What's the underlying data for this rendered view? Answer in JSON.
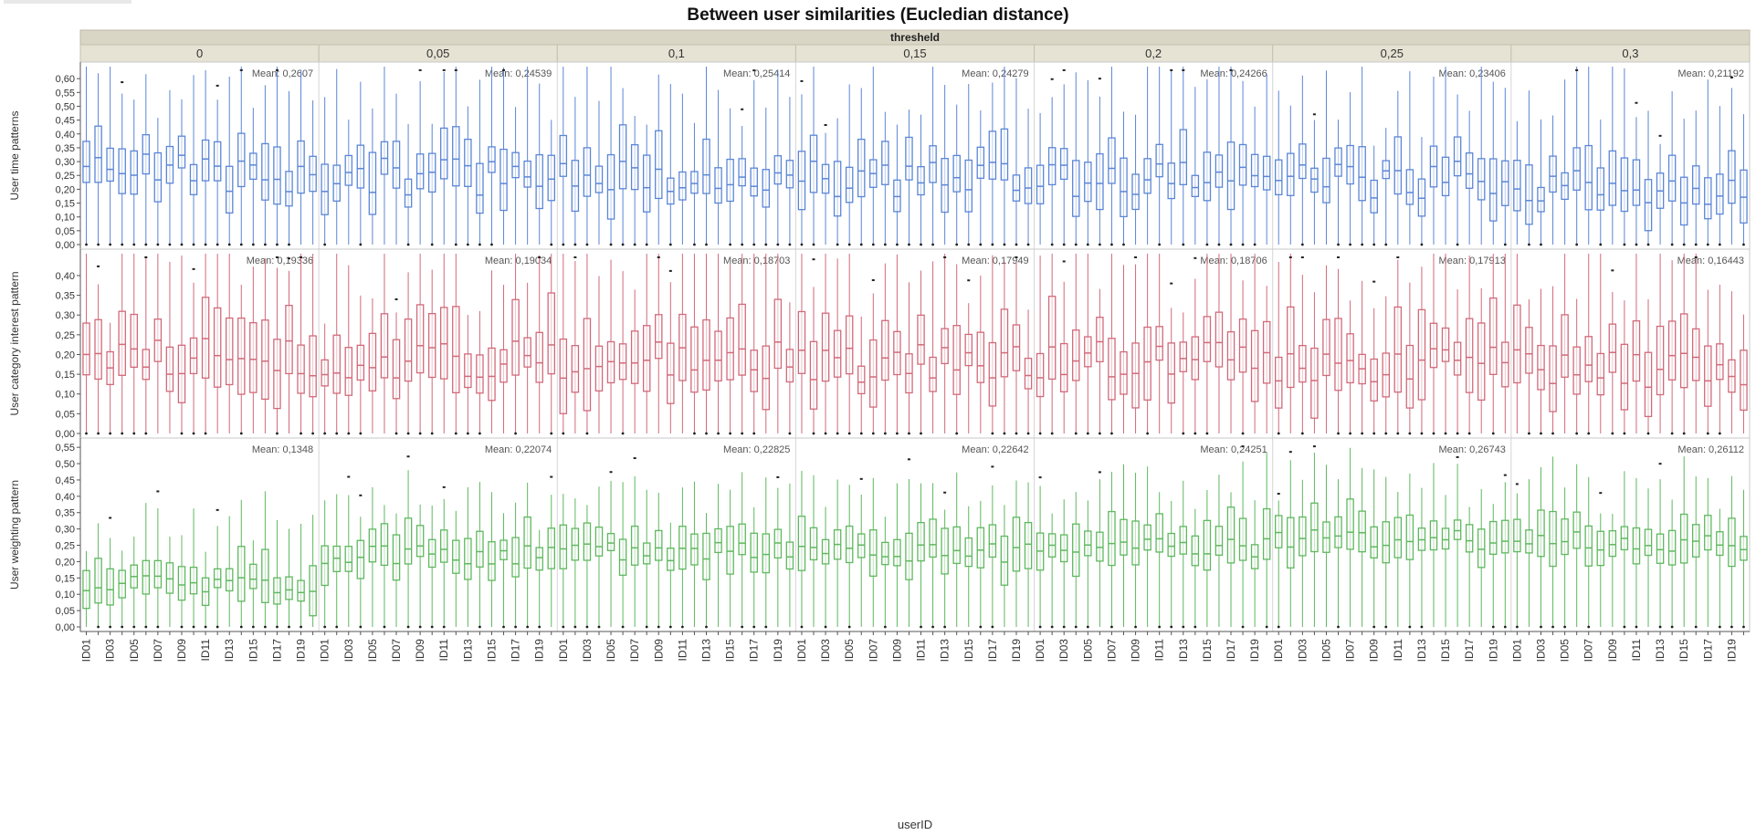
{
  "chart_data": {
    "type": "box",
    "title": "Between user similarities (Eucledian distance)",
    "facet_header": "thresheld",
    "xlabel": "userID",
    "x_tick_labels": [
      "ID01",
      "ID03",
      "ID05",
      "ID07",
      "ID09",
      "ID11",
      "ID13",
      "ID15",
      "ID17",
      "ID19"
    ],
    "users": [
      "ID01",
      "ID02",
      "ID03",
      "ID04",
      "ID05",
      "ID06",
      "ID07",
      "ID08",
      "ID09",
      "ID10",
      "ID11",
      "ID12",
      "ID13",
      "ID14",
      "ID15",
      "ID16",
      "ID17",
      "ID18",
      "ID19",
      "ID20"
    ],
    "thresholds": [
      "0",
      "0,05",
      "0,1",
      "0,15",
      "0,2",
      "0,25",
      "0,3"
    ],
    "rows": [
      {
        "ylabel": "User time patterns",
        "color": "#5b86d6",
        "ylim": [
          0,
          0.65
        ],
        "ticks": [
          "0,00",
          "0,05",
          "0,10",
          "0,15",
          "0,20",
          "0,25",
          "0,30",
          "0,35",
          "0,40",
          "0,45",
          "0,50",
          "0,55",
          "0,60"
        ],
        "tick_values": [
          0,
          0.05,
          0.1,
          0.15,
          0.2,
          0.25,
          0.3,
          0.35,
          0.4,
          0.45,
          0.5,
          0.55,
          0.6
        ],
        "means": [
          "Mean: 0,2607",
          "Mean: 0,24539",
          "Mean: 0,25414",
          "Mean: 0,24279",
          "Mean: 0,24266",
          "Mean: 0,23406",
          "Mean: 0,21192"
        ],
        "mean_values": [
          0.2607,
          0.24539,
          0.25414,
          0.24279,
          0.24266,
          0.23406,
          0.21192
        ],
        "spread": [
          0.07,
          0.055,
          0.13,
          0.38
        ]
      },
      {
        "ylabel": "User category interest pattern",
        "color": "#d16a7a",
        "ylim": [
          0,
          0.46
        ],
        "ticks": [
          "0,00",
          "0,05",
          "0,10",
          "0,15",
          "0,20",
          "0,25",
          "0,30",
          "0,35",
          "0,40"
        ],
        "tick_values": [
          0,
          0.05,
          0.1,
          0.15,
          0.2,
          0.25,
          0.3,
          0.35,
          0.4
        ],
        "means": [
          "Mean: 0,19336",
          "Mean: 0,19034",
          "Mean: 0,18703",
          "Mean: 0,17949",
          "Mean: 0,18706",
          "Mean: 0,17913",
          "Mean: 0,16443"
        ],
        "mean_values": [
          0.19336,
          0.19034,
          0.18703,
          0.17949,
          0.18706,
          0.17913,
          0.16443
        ],
        "spread": [
          0.05,
          0.045,
          0.12,
          0.27
        ]
      },
      {
        "ylabel": "User weighting pattern",
        "color": "#5fb85f",
        "ylim": [
          0,
          0.57
        ],
        "ticks": [
          "0,00",
          "0,05",
          "0,10",
          "0,15",
          "0,20",
          "0,25",
          "0,30",
          "0,35",
          "0,40",
          "0,45",
          "0,50",
          "0,55"
        ],
        "tick_values": [
          0,
          0.05,
          0.1,
          0.15,
          0.2,
          0.25,
          0.3,
          0.35,
          0.4,
          0.45,
          0.5,
          0.55
        ],
        "means": [
          "Mean: 0,1348",
          "Mean: 0,22074",
          "Mean: 0,22825",
          "Mean: 0,22642",
          "Mean: 0,24251",
          "Mean: 0,26743",
          "Mean: 0,26112"
        ],
        "mean_values": [
          0.1348,
          0.22074,
          0.22825,
          0.22642,
          0.24251,
          0.26743,
          0.26112
        ],
        "spread": [
          0.03,
          0.025,
          0.09,
          0.18
        ]
      }
    ],
    "grid": false,
    "legend": "none"
  }
}
